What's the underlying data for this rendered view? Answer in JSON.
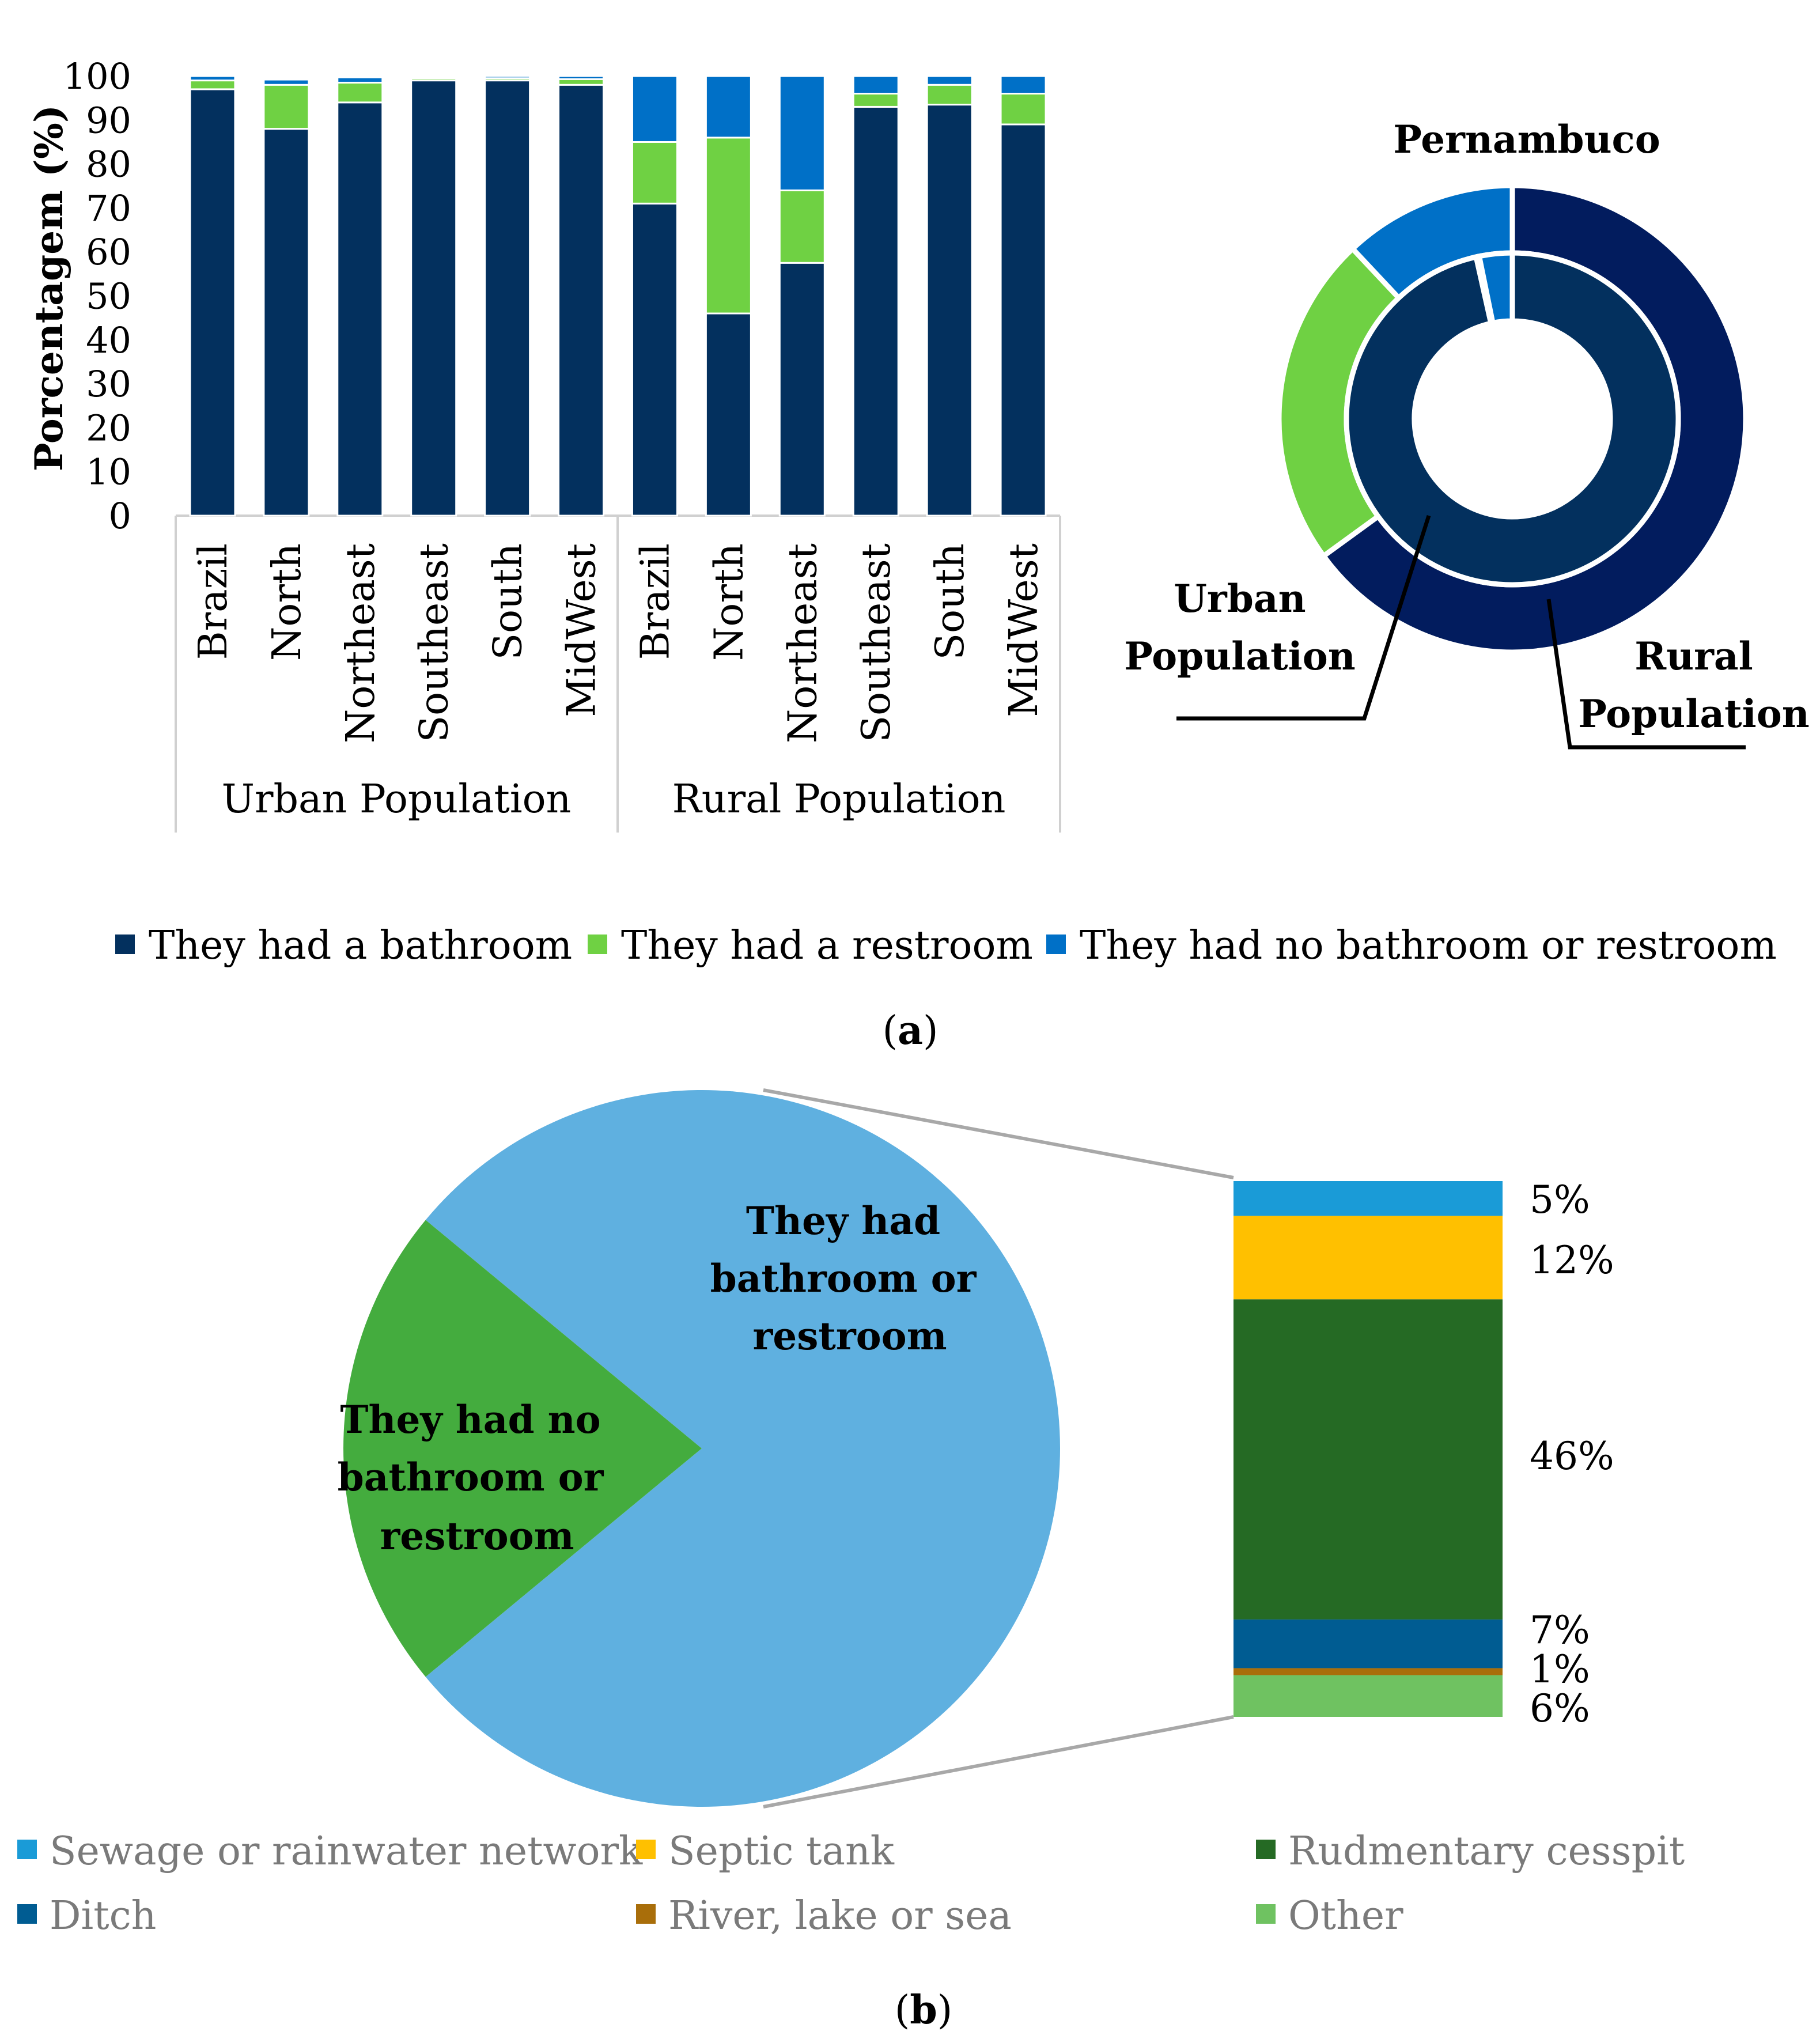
{
  "chart_data": [
    {
      "type": "bar",
      "stacked": true,
      "ylabel": "Porcentagem (%)",
      "ylim": [
        0,
        100
      ],
      "yticks": [
        "0",
        "10",
        "20",
        "30",
        "40",
        "50",
        "60",
        "70",
        "80",
        "90",
        "100"
      ],
      "groups": [
        {
          "name": "Urban Population",
          "categories": [
            "Brazil",
            "North",
            "Northeast",
            "Southeast",
            "South",
            "MidWest"
          ]
        },
        {
          "name": "Rural Population",
          "categories": [
            "Brazil",
            "North",
            "Northeast",
            "Southeast",
            "South",
            "MidWest"
          ]
        }
      ],
      "series": [
        {
          "name": "They had a bathroom",
          "color": "#03305e",
          "values": [
            97,
            88,
            94,
            99,
            99,
            98,
            71,
            46,
            57.5,
            93,
            93.5,
            89
          ]
        },
        {
          "name": "They had a restroom",
          "color": "#6fd143",
          "values": [
            2,
            10,
            4.5,
            0.5,
            0.5,
            1.3,
            14,
            40,
            16.5,
            3,
            4.5,
            7
          ]
        },
        {
          "name": "They had no bathroom or restroom",
          "color": "#0070c7",
          "values": [
            1,
            1.2,
            1.2,
            0.2,
            0.5,
            0.7,
            15,
            14,
            26,
            4,
            2,
            4
          ]
        }
      ]
    },
    {
      "type": "pie",
      "subtype": "donut",
      "title": "Pernambuco",
      "rings": [
        {
          "name": "Urban Population",
          "ring": "inner",
          "values": [
            96.5,
            0.3,
            3.2
          ],
          "colors": [
            "#03305e",
            "#6fd143",
            "#0070c7"
          ]
        },
        {
          "name": "Rural Population",
          "ring": "outer",
          "values": [
            65,
            23,
            12
          ],
          "colors": [
            "#021c5e",
            "#6fd143",
            "#0070c7"
          ]
        }
      ],
      "labels": {
        "urban_line1": "Urban",
        "urban_line2": "Population",
        "rural_line1": "Rural",
        "rural_line2": "Population"
      }
    },
    {
      "type": "pie",
      "subtype": "bar-of-pie",
      "slices": [
        {
          "label_lines": [
            "They had",
            "bathroom or",
            "restroom"
          ],
          "value": 78,
          "color": "#5fb0e0"
        },
        {
          "label_lines": [
            "They had no",
            "bathroom or",
            "restroom"
          ],
          "value": 22,
          "color": "#44ac3e"
        }
      ],
      "stack": {
        "categories": [
          "Sewage or rainwater network",
          "Septic tank",
          "Rudmentary cesspit",
          "Ditch",
          "River, lake or sea",
          "Other"
        ],
        "values": [
          5,
          12,
          46,
          7,
          1,
          6
        ],
        "labels": [
          "5%",
          "12%",
          "46%",
          "7%",
          "1%",
          "6%"
        ],
        "colors": [
          "#1a9bd7",
          "#ffc000",
          "#256a24",
          "#005c92",
          "#a96e0a",
          "#6fc261"
        ]
      }
    }
  ],
  "legend_a": [
    "They had a bathroom",
    "They had a restroom",
    "They had no bathroom or restroom"
  ],
  "legend_b": [
    "Sewage or rainwater network",
    "Septic tank",
    "Rudmentary cesspit",
    "Ditch",
    "River, lake or sea",
    "Other"
  ],
  "caption_a": {
    "open": "(",
    "letter": "a",
    "close": ")"
  },
  "caption_b": {
    "open": "(",
    "letter": "b",
    "close": ")"
  }
}
